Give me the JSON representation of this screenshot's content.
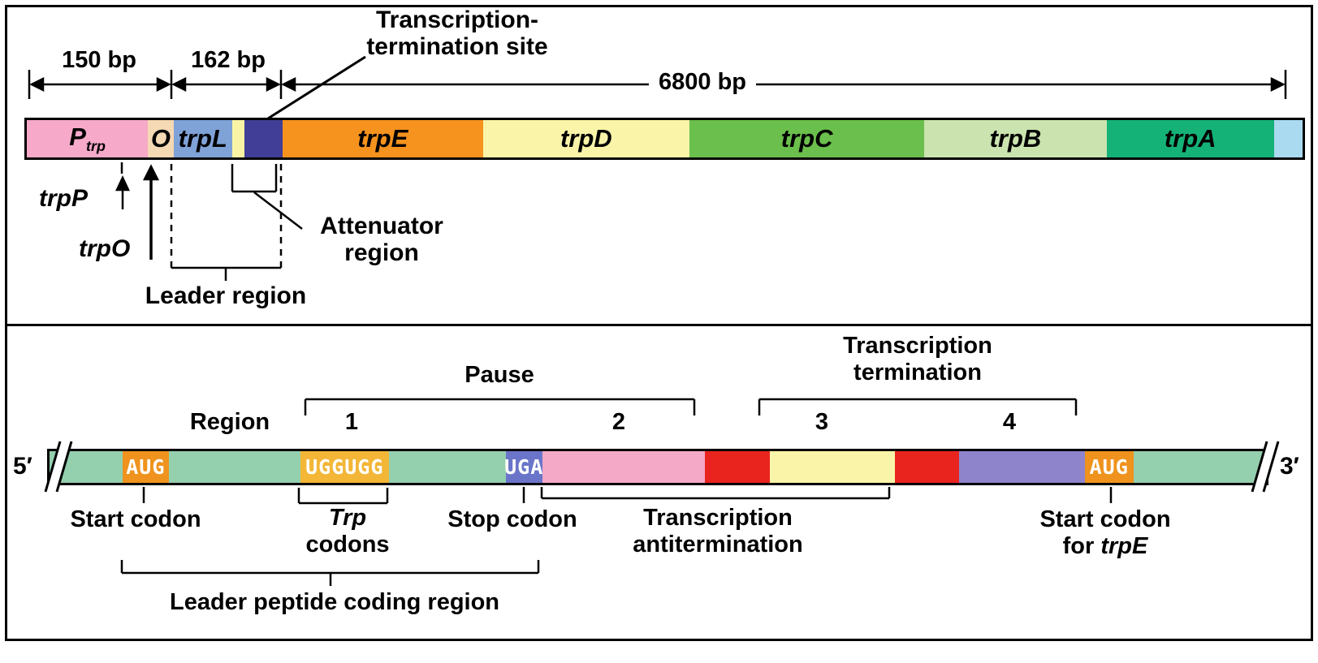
{
  "top_panel": {
    "measure_150": "150 bp",
    "measure_162": "162 bp",
    "measure_6800": "6800 bp",
    "termination_site_line1": "Transcription-",
    "termination_site_line2": "termination site",
    "promoter_label": "trpP",
    "operator_label": "trpO",
    "attenuator_line1": "Attenuator",
    "attenuator_line2": "region",
    "leader_region_label": "Leader region",
    "gene_bar_segments": [
      {
        "name": "segment-promoter",
        "label": "P",
        "sub": "trp",
        "width": 9.5,
        "color": "#f6a9c9"
      },
      {
        "name": "segment-operator",
        "label": "O",
        "width": 2.0,
        "color": "#f5d8b4"
      },
      {
        "name": "segment-trpL",
        "label": "trpL",
        "width": 4.6,
        "color": "#7fa2d7"
      },
      {
        "name": "segment-leader-spacer",
        "width": 0.95,
        "color": "#f9f3a6"
      },
      {
        "name": "segment-attenuator",
        "width": 3.0,
        "color": "#403e96"
      },
      {
        "name": "segment-trpE",
        "label": "trpE",
        "width": 15.7,
        "color": "#f6921e"
      },
      {
        "name": "segment-trpD",
        "label": "trpD",
        "width": 16.2,
        "color": "#faf4a8"
      },
      {
        "name": "segment-trpC",
        "label": "trpC",
        "width": 18.4,
        "color": "#6bbf4c"
      },
      {
        "name": "segment-trpB",
        "label": "trpB",
        "width": 14.3,
        "color": "#cae3af"
      },
      {
        "name": "segment-trpA",
        "label": "trpA",
        "width": 13.1,
        "color": "#15b278"
      },
      {
        "name": "segment-end-cap",
        "width": 2.25,
        "color": "#aadaf0"
      }
    ]
  },
  "bottom_panel": {
    "five_prime": "5′",
    "three_prime": "3′",
    "region_word": "Region",
    "region_numbers": [
      "1",
      "2",
      "3",
      "4"
    ],
    "pause_label": "Pause",
    "termination_line1": "Transcription",
    "termination_line2": "termination",
    "start_codon_label": "Start codon",
    "trp_codons_line1": "Trp",
    "trp_codons_line2": "codons",
    "stop_codon_label": "Stop codon",
    "antitermination_line1": "Transcription",
    "antitermination_line2": "antitermination",
    "start_codon_trpE_line1": "Start codon",
    "start_codon_trpE_for": "for ",
    "start_codon_trpE_gene": "trpE",
    "leader_peptide_label": "Leader peptide coding region",
    "mrna_segments": [
      {
        "name": "segment-leader-5p",
        "width": 6.0,
        "color": "#94cfae"
      },
      {
        "name": "segment-start-codon",
        "label": "AUG",
        "codon": true,
        "width": 3.8,
        "color": "#ef931e",
        "text_color": "#ffffff"
      },
      {
        "name": "segment-spacer-1",
        "width": 10.8,
        "color": "#94cfae"
      },
      {
        "name": "segment-trp-codons",
        "label": "UGGUGG",
        "codon": true,
        "width": 7.3,
        "color": "#f3b637",
        "text_color": "#ffffff"
      },
      {
        "name": "segment-spacer-2",
        "width": 9.6,
        "color": "#94cfae"
      },
      {
        "name": "segment-stop-codon",
        "label": "UGA",
        "codon": true,
        "width": 3.0,
        "color": "#6a75c9",
        "text_color": "#ffffff"
      },
      {
        "name": "segment-region-2",
        "width": 13.4,
        "color": "#f4a9c7"
      },
      {
        "name": "segment-red-1",
        "width": 5.3,
        "color": "#e9241f"
      },
      {
        "name": "segment-region-3",
        "width": 10.3,
        "color": "#faf4a8"
      },
      {
        "name": "segment-red-2",
        "width": 5.3,
        "color": "#e9241f"
      },
      {
        "name": "segment-region-4",
        "width": 10.3,
        "color": "#8d84cc"
      },
      {
        "name": "segment-trpE-start-codon",
        "label": "AUG",
        "codon": true,
        "width": 4.0,
        "color": "#ef931e",
        "text_color": "#ffffff"
      },
      {
        "name": "segment-leader-3p",
        "width": 10.9,
        "color": "#94cfae"
      }
    ]
  }
}
